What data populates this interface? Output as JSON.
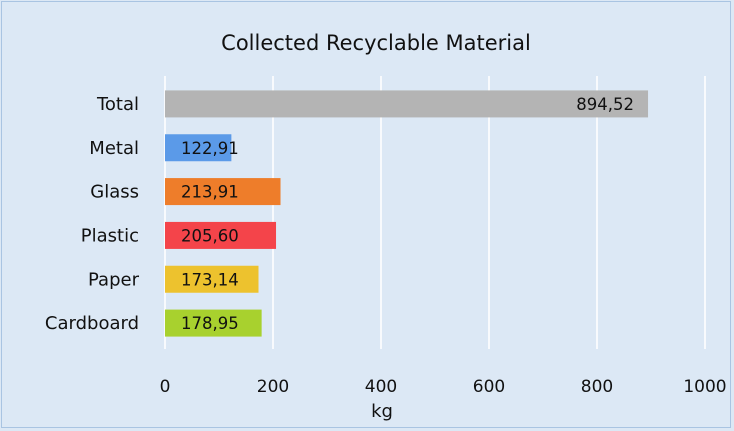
{
  "chart_data": {
    "type": "bar",
    "orientation": "horizontal",
    "title": "Collected Recyclable Material",
    "xlabel": "kg",
    "ylabel": "",
    "xlim": [
      0,
      1000
    ],
    "xticks": [
      0,
      200,
      400,
      600,
      800,
      1000
    ],
    "grid": true,
    "legend": "none",
    "categories": [
      "Total",
      "Metal",
      "Glass",
      "Plastic",
      "Paper",
      "Cardboard"
    ],
    "values": [
      894.52,
      122.91,
      213.91,
      205.6,
      173.14,
      178.95
    ],
    "value_labels": [
      "894,52",
      "122,91",
      "213,91",
      "205,60",
      "173,14",
      "178,95"
    ],
    "colors": [
      "#b4b4b4",
      "#5b9ae8",
      "#ee7d2a",
      "#f4444a",
      "#edc22e",
      "#a8d12e"
    ]
  }
}
